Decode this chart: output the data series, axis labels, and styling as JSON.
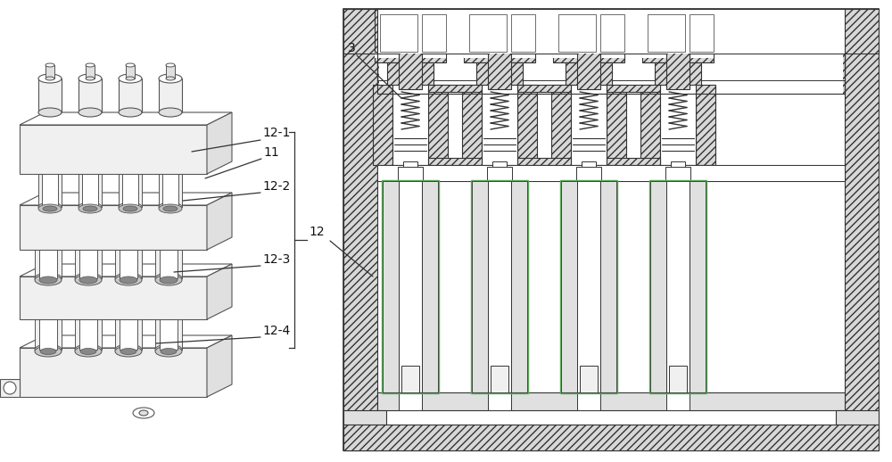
{
  "bg_color": "#ffffff",
  "ec": "#555555",
  "ec_dark": "#333333",
  "hatch_fill": "#d8d8d8",
  "white_fill": "#ffffff",
  "light_fill": "#f0f0f0",
  "gray_fill": "#e0e0e0",
  "green_ec": "#5aaa5a",
  "fig_w": 10.0,
  "fig_h": 5.18,
  "dpi": 100,
  "label_fontsize": 10
}
